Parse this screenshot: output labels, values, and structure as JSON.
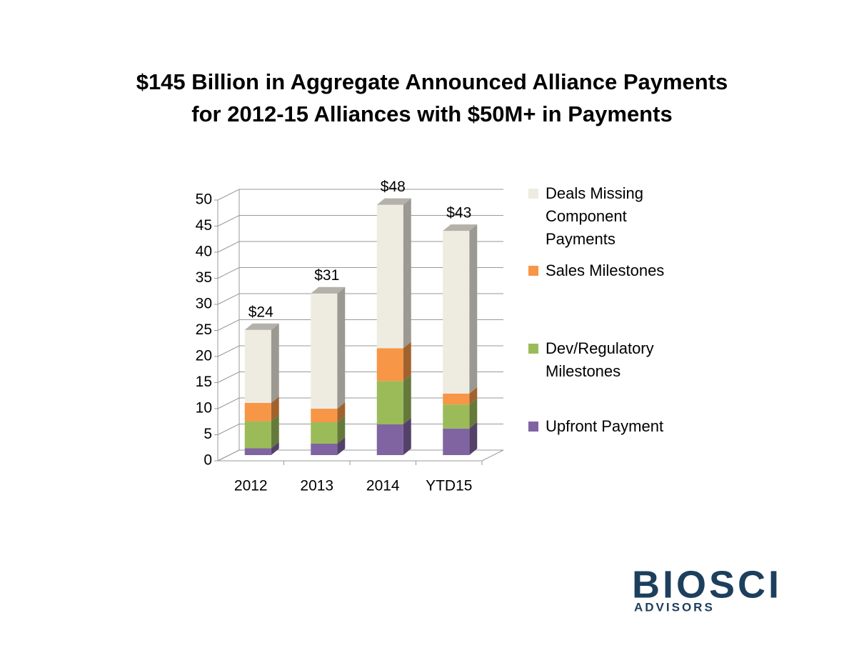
{
  "chart_data": {
    "type": "stacked-bar-3d",
    "title": [
      "$145 Billion in Aggregate Announced Alliance Payments",
      "for 2012-15 Alliances with $50M+ in Payments"
    ],
    "categories": [
      "2012",
      "2013",
      "2014",
      "YTD15"
    ],
    "series": [
      {
        "name": "Upfront Payment",
        "color": "#8064a2",
        "values": [
          1.3,
          2.2,
          5.9,
          5.1
        ]
      },
      {
        "name": "Dev/Regulatory Milestones",
        "color": "#9bbb59",
        "values": [
          5.2,
          4.1,
          8.3,
          4.6
        ]
      },
      {
        "name": "Sales Milestones",
        "color": "#f79646",
        "values": [
          3.5,
          2.6,
          6.3,
          2.1
        ]
      },
      {
        "name": "Deals Missing Component Payments",
        "color": "#eeece1",
        "values": [
          14.0,
          22.1,
          27.5,
          31.2
        ]
      }
    ],
    "total_labels": [
      "$24",
      "$31",
      "$48",
      "$43"
    ],
    "ylim": [
      0,
      50
    ],
    "yticks": [
      0,
      5,
      10,
      15,
      20,
      25,
      30,
      35,
      40,
      45,
      50
    ],
    "grid": true,
    "legend": "right",
    "logo": {
      "name": "BIOSCI",
      "tagline": "ADVISORS"
    }
  }
}
